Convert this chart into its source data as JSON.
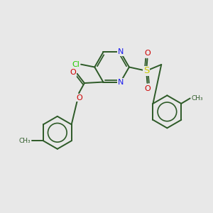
{
  "background_color": "#e8e8e8",
  "bond_color": "#2d5a27",
  "n_color": "#1a1aee",
  "o_color": "#cc0000",
  "s_color": "#cccc00",
  "cl_color": "#22cc00",
  "figsize": [
    3.0,
    3.0
  ],
  "dpi": 100,
  "xlim": [
    0,
    10
  ],
  "ylim": [
    0,
    10
  ]
}
